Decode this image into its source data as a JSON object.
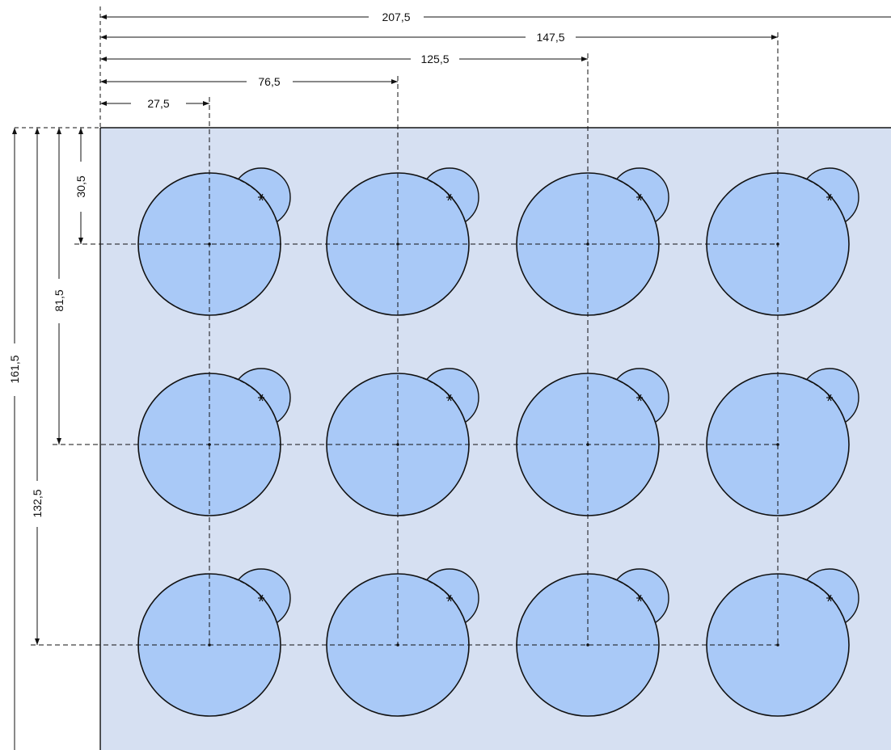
{
  "dimensions": {
    "horizontal": [
      "27,5",
      "76,5",
      "125,5",
      "147,5",
      "207,5"
    ],
    "vertical": [
      "30,5",
      "81,5",
      "132,5",
      "161,5"
    ]
  },
  "grid": {
    "rows": 3,
    "columns": 4
  },
  "colors": {
    "panel_fill": "#d6e0f2",
    "circle_fill": "#a9c9f7",
    "stroke": "#111111"
  }
}
